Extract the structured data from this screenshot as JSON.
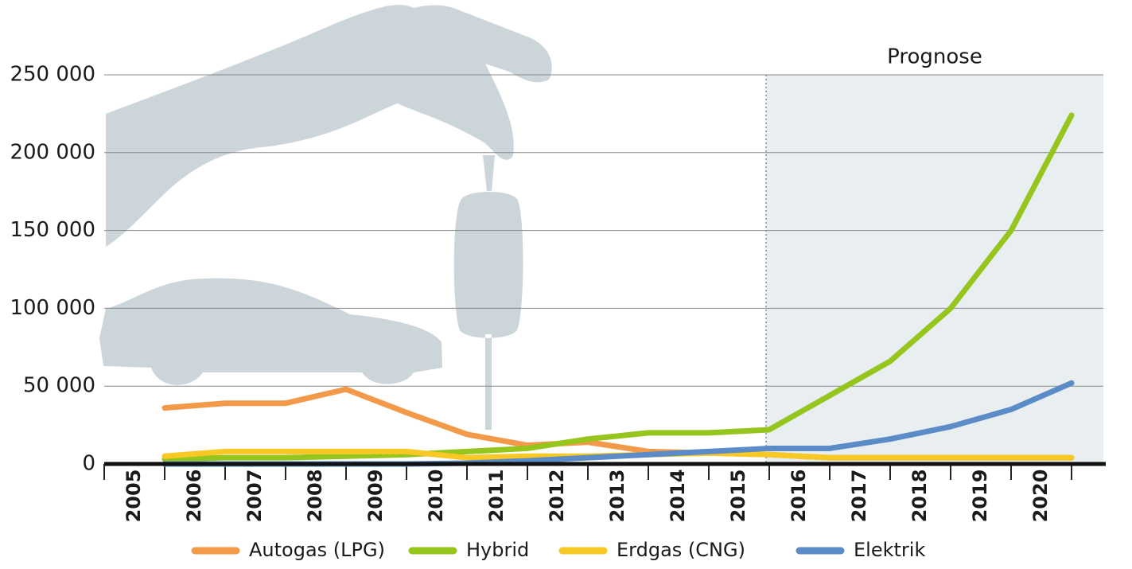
{
  "chart_data": {
    "type": "line",
    "categories": [
      "2005",
      "2006",
      "2007",
      "2008",
      "2009",
      "2010",
      "2011",
      "2012",
      "2013",
      "2014",
      "2015",
      "2016",
      "2017",
      "2018",
      "2019",
      "2020"
    ],
    "series": [
      {
        "name": "Autogas (LPG)",
        "color": "#f39a4a",
        "values": [
          36000,
          39000,
          39000,
          48000,
          33000,
          19000,
          12000,
          14000,
          8000,
          7000,
          6000,
          4000,
          4000,
          4000,
          4000,
          4000
        ]
      },
      {
        "name": "Hybrid",
        "color": "#96c51e",
        "values": [
          3000,
          4000,
          4000,
          5000,
          6000,
          8000,
          10000,
          16000,
          20000,
          20000,
          22000,
          44000,
          66000,
          100000,
          150000,
          224000
        ]
      },
      {
        "name": "Erdgas (CNG)",
        "color": "#f8c825",
        "values": [
          5000,
          8000,
          8000,
          8000,
          8000,
          4000,
          5000,
          5000,
          6000,
          7000,
          6000,
          4000,
          4000,
          4000,
          4000,
          4000
        ]
      },
      {
        "name": "Elektrik",
        "color": "#5b8cc8",
        "values": [
          0,
          0,
          0,
          0,
          0,
          500,
          2000,
          4000,
          6000,
          8000,
          10000,
          10000,
          16000,
          24000,
          35000,
          52000
        ]
      }
    ],
    "annotations": [
      {
        "text": "Prognose",
        "from": "2016"
      }
    ],
    "ylim": [
      0,
      250000
    ],
    "yticks": [
      0,
      {
        "value": 50000,
        "label": "50 000"
      },
      {
        "value": 100000,
        "label": "100 000"
      },
      {
        "value": 150000,
        "label": "150 000"
      },
      {
        "value": 200000,
        "label": "200 000"
      },
      {
        "value": 250000,
        "label": "250 000"
      }
    ],
    "grid": true
  }
}
